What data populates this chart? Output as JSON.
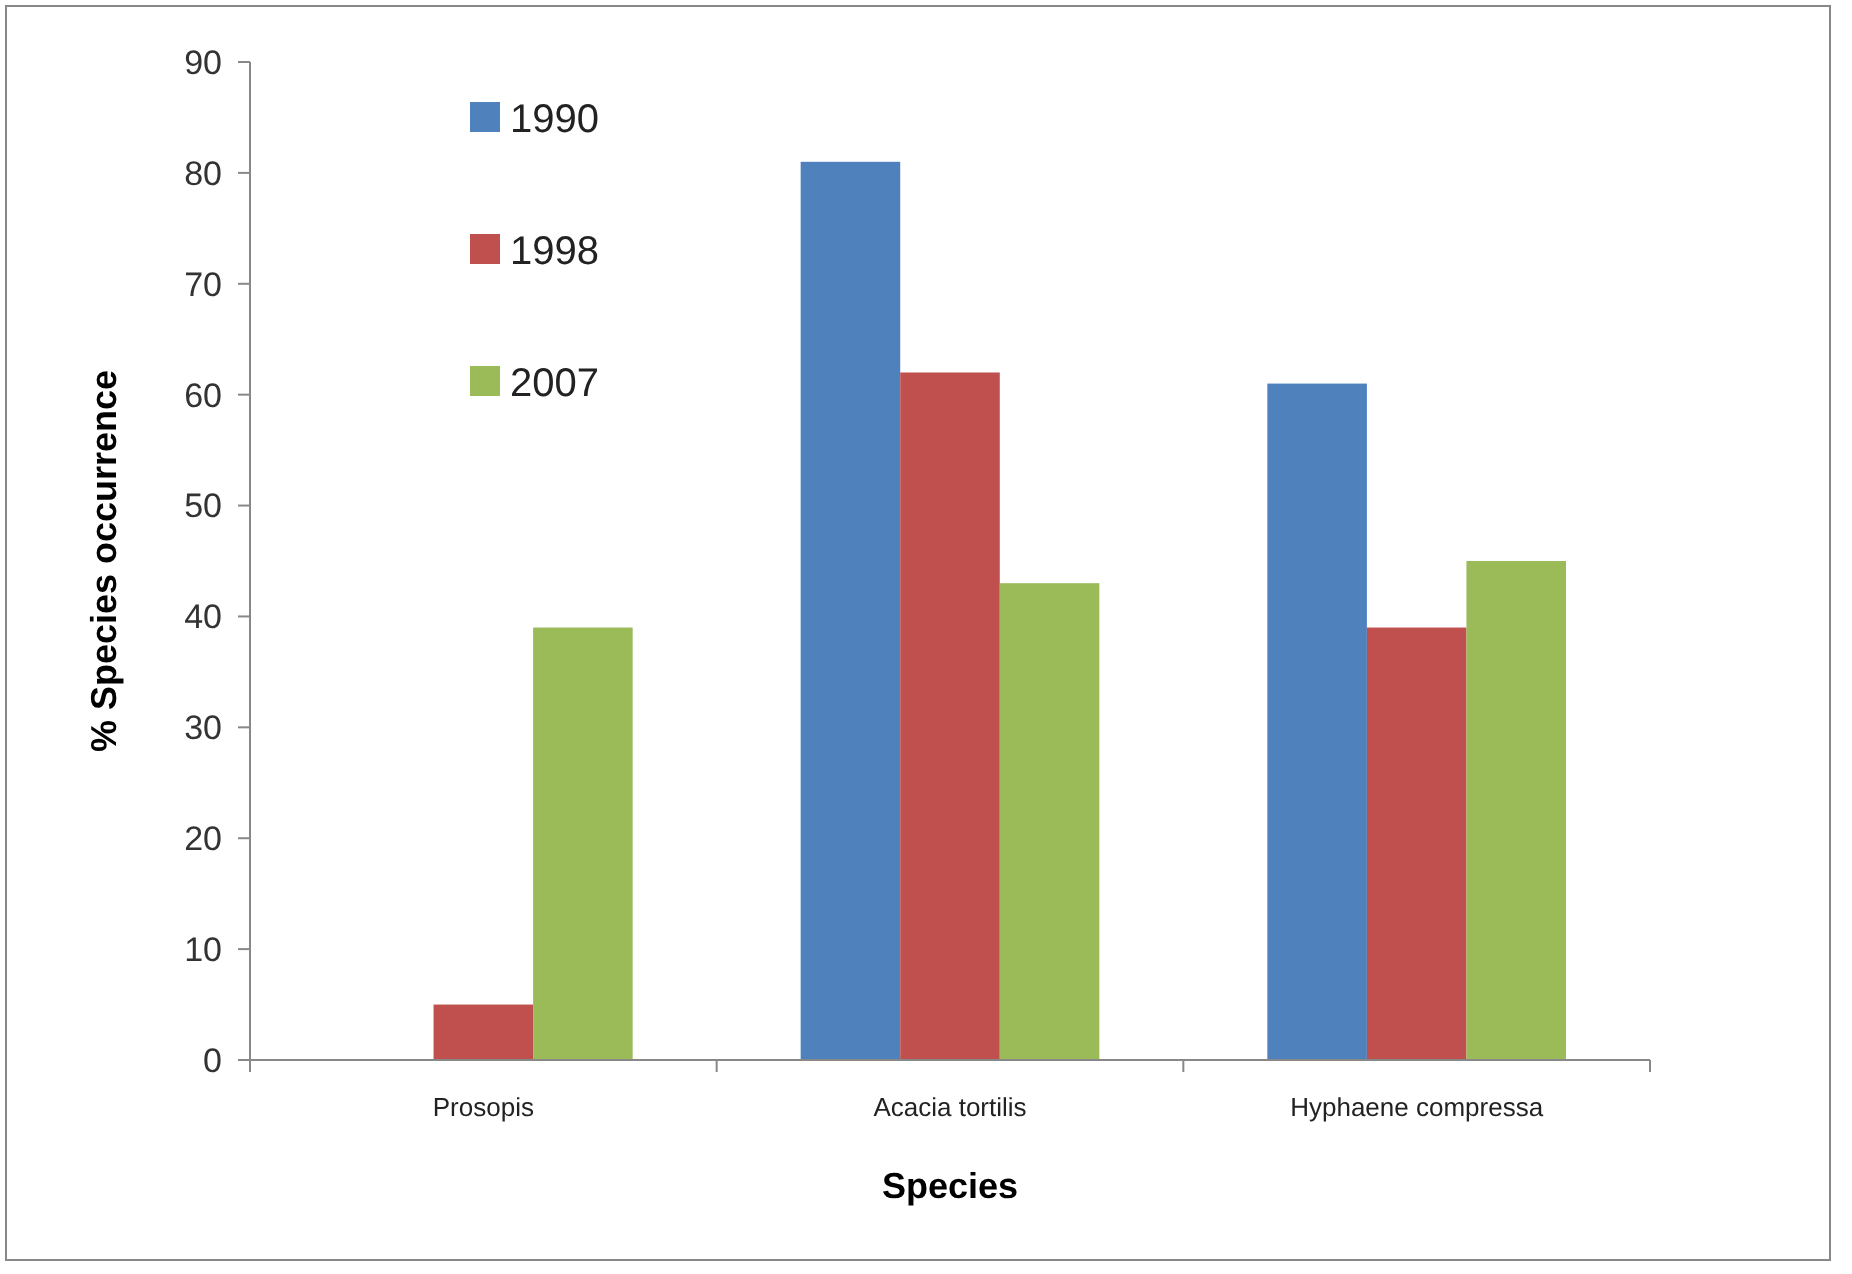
{
  "chart_data": {
    "type": "bar",
    "xlabel": "Species",
    "ylabel": "% Species occurrence",
    "categories": [
      "Prosopis",
      "Acacia tortilis",
      "Hyphaene compressa"
    ],
    "series": [
      {
        "name": "1990",
        "color": "#4f81bd",
        "values": [
          0,
          81,
          61
        ]
      },
      {
        "name": "1998",
        "color": "#c0504d",
        "values": [
          5,
          62,
          39
        ]
      },
      {
        "name": "2007",
        "color": "#9bbb59",
        "values": [
          39,
          43,
          45
        ]
      }
    ],
    "ylim": [
      0,
      90
    ],
    "yticks": [
      0,
      10,
      20,
      30,
      40,
      50,
      60,
      70,
      80,
      90
    ],
    "grid": false,
    "legend": "top left"
  }
}
